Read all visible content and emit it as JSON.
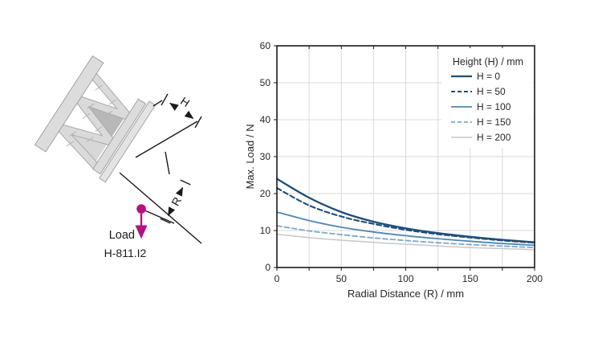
{
  "diagram": {
    "model_label": "H-811.I2",
    "load_label": "Load",
    "h_dim_label": "H",
    "r_dim_label": "R",
    "accent_color": "#b5137f",
    "plate_color": "#dcdcdc",
    "line_color": "#1a1a1a"
  },
  "chart_data": {
    "type": "line",
    "title": "",
    "xlabel": "Radial Distance (R) / mm",
    "ylabel": "Max. Load / N",
    "xlim": [
      0,
      200
    ],
    "ylim": [
      0,
      60
    ],
    "x_major_step": 50,
    "x_minor_step": 25,
    "y_major_step": 10,
    "grid": true,
    "grid_color": "#d9d9d9",
    "axis_color": "#1a1a1a",
    "legend_title": "Height (H) / mm",
    "legend_position": "top-right",
    "x_tick_labels": [
      "0",
      "50",
      "100",
      "150",
      "200"
    ],
    "y_tick_labels": [
      "0",
      "10",
      "20",
      "30",
      "40",
      "50",
      "60"
    ],
    "x": [
      0,
      25,
      50,
      75,
      100,
      125,
      150,
      175,
      200
    ],
    "series": [
      {
        "name": "H = 0",
        "color": "#1f4e79",
        "dash": "solid",
        "width": 2.3,
        "values": [
          24.0,
          18.9,
          15.0,
          12.4,
          10.6,
          9.3,
          8.3,
          7.5,
          6.8
        ]
      },
      {
        "name": "H = 50",
        "color": "#1f4e79",
        "dash": "dashed",
        "width": 2.1,
        "values": [
          21.5,
          16.8,
          13.8,
          11.8,
          10.2,
          9.0,
          8.1,
          7.3,
          6.7
        ]
      },
      {
        "name": "H = 100",
        "color": "#4e87b0",
        "dash": "solid",
        "width": 1.8,
        "values": [
          15.0,
          12.7,
          10.9,
          9.6,
          8.6,
          7.8,
          7.1,
          6.5,
          6.0
        ]
      },
      {
        "name": "H = 150",
        "color": "#7fa8cc",
        "dash": "dashed",
        "width": 1.8,
        "values": [
          11.3,
          9.9,
          8.9,
          8.0,
          7.3,
          6.7,
          6.2,
          5.8,
          5.4
        ]
      },
      {
        "name": "H = 200",
        "color": "#c4c8cc",
        "dash": "solid",
        "width": 1.5,
        "values": [
          9.0,
          8.1,
          7.4,
          6.8,
          6.3,
          5.8,
          5.4,
          5.1,
          4.8
        ]
      }
    ]
  }
}
